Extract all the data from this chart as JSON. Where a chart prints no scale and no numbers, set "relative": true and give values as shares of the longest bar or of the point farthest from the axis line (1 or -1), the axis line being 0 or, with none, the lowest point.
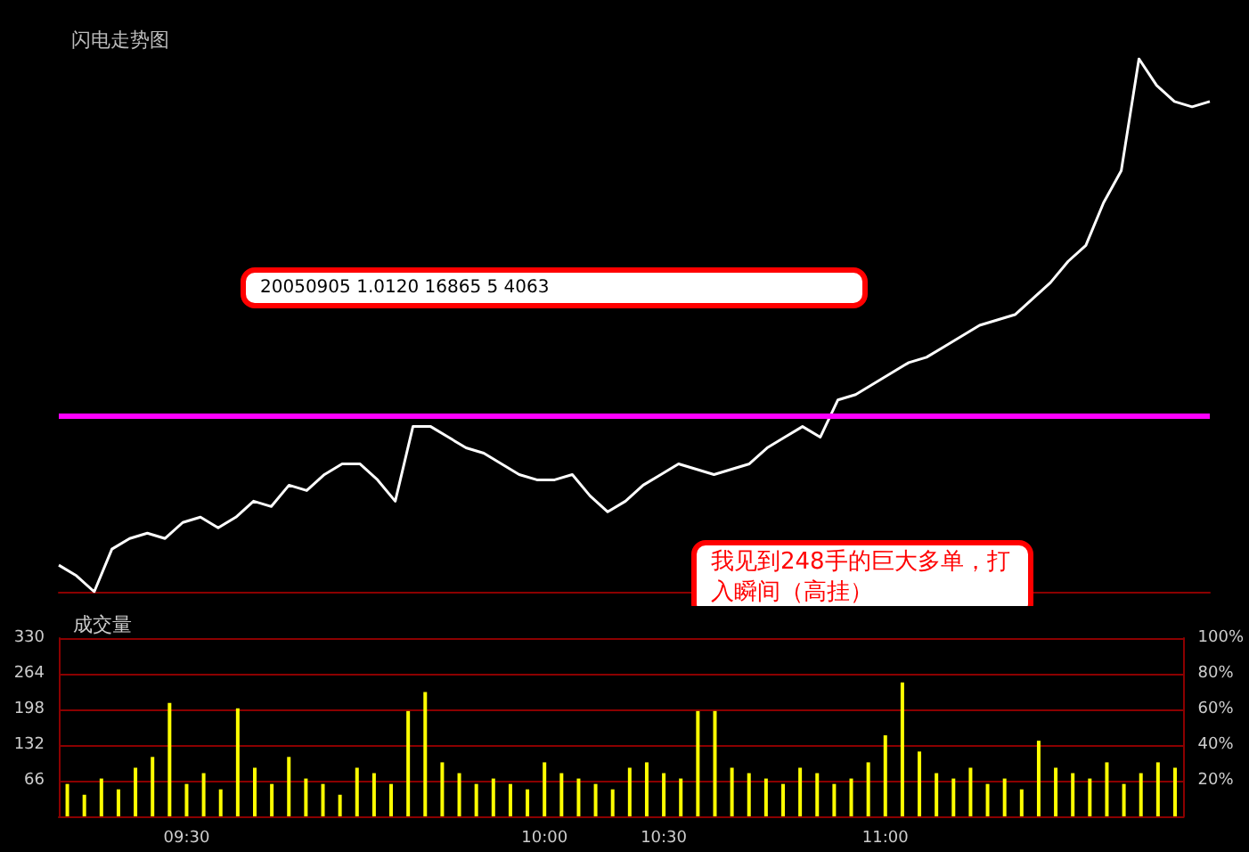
{
  "chart_data": [
    {
      "type": "line",
      "subtitle": "闪电走势图",
      "relative": true,
      "marker": "none",
      "line_style": "solid",
      "categories": [
        null,
        null,
        null,
        null,
        null,
        null,
        null,
        null,
        null,
        null,
        null,
        null,
        null,
        null,
        null,
        null,
        null,
        null,
        null,
        null,
        null,
        null,
        null,
        null,
        null,
        null,
        null,
        null,
        null,
        null,
        null,
        null,
        null,
        null,
        null,
        null,
        null,
        null,
        null,
        null,
        null,
        null,
        null,
        null,
        null,
        null,
        null,
        null,
        null,
        null,
        null,
        null,
        null,
        null,
        null,
        null,
        null,
        null,
        null,
        null,
        null,
        null,
        null,
        null,
        null,
        null
      ],
      "series": [
        {
          "color": "#ffffff",
          "values": [
            0.05,
            0.03,
            0,
            0.08,
            0.1,
            0.11,
            0.1,
            0.13,
            0.14,
            0.12,
            0.14,
            0.17,
            0.16,
            0.2,
            0.19,
            0.22,
            0.24,
            0.24,
            0.21,
            0.17,
            0.31,
            0.31,
            0.29,
            0.27,
            0.26,
            0.24,
            0.22,
            0.21,
            0.21,
            0.22,
            0.18,
            0.15,
            0.17,
            0.2,
            0.22,
            0.24,
            0.23,
            0.22,
            0.23,
            0.24,
            0.27,
            0.29,
            0.31,
            0.29,
            0.36,
            0.37,
            0.39,
            0.41,
            0.43,
            0.44,
            0.46,
            0.48,
            0.5,
            0.51,
            0.52,
            0.55,
            0.58,
            0.62,
            0.65,
            0.73,
            0.79,
            1,
            0.95,
            0.92,
            0.91,
            0.92
          ]
        }
      ],
      "ref_lines": [
        {
          "axis": "y",
          "value": 0.33,
          "color": "#ff00ff"
        }
      ],
      "annotations": [
        "20050905  1.0120  16865  5  4063",
        "我见到248手的巨大多单，打入瞬间（高挂）"
      ]
    },
    {
      "type": "bar",
      "title": "成交量",
      "grid": "y",
      "categories": [
        null,
        null,
        null,
        null,
        null,
        null,
        null,
        "09:30",
        null,
        null,
        null,
        null,
        null,
        null,
        null,
        null,
        null,
        null,
        null,
        null,
        null,
        null,
        null,
        null,
        null,
        null,
        null,
        null,
        "10:00",
        null,
        null,
        null,
        null,
        null,
        null,
        "10:30",
        null,
        null,
        null,
        null,
        null,
        null,
        null,
        null,
        null,
        null,
        null,
        null,
        "11:00",
        null,
        null,
        null,
        null,
        null,
        null,
        null,
        null,
        null,
        null,
        null,
        null,
        null,
        null,
        null,
        null,
        null
      ],
      "series": [
        {
          "color": "#ffff00",
          "values": [
            60,
            40,
            70,
            50,
            90,
            110,
            210,
            60,
            80,
            50,
            200,
            90,
            60,
            110,
            70,
            60,
            40,
            90,
            80,
            60,
            195,
            230,
            100,
            80,
            60,
            70,
            60,
            50,
            100,
            80,
            70,
            60,
            50,
            90,
            100,
            80,
            70,
            195,
            195,
            90,
            80,
            70,
            60,
            90,
            80,
            60,
            70,
            100,
            150,
            248,
            120,
            80,
            70,
            90,
            60,
            70,
            50,
            140,
            90,
            80,
            70,
            100,
            60,
            80,
            100,
            90
          ]
        }
      ],
      "ylim": [
        0,
        330
      ],
      "yticks": [
        {
          "value": 0,
          "label": null
        },
        66,
        132,
        198,
        264,
        330
      ],
      "y2lim": [
        0,
        100
      ],
      "y2ticks": [
        {
          "value": 0,
          "label": null
        },
        {
          "value": 20,
          "label": "20%"
        },
        {
          "value": 40,
          "label": "40%"
        },
        {
          "value": 60,
          "label": "60%"
        },
        {
          "value": 80,
          "label": "80%"
        },
        {
          "value": 100,
          "label": "100%"
        }
      ]
    }
  ]
}
